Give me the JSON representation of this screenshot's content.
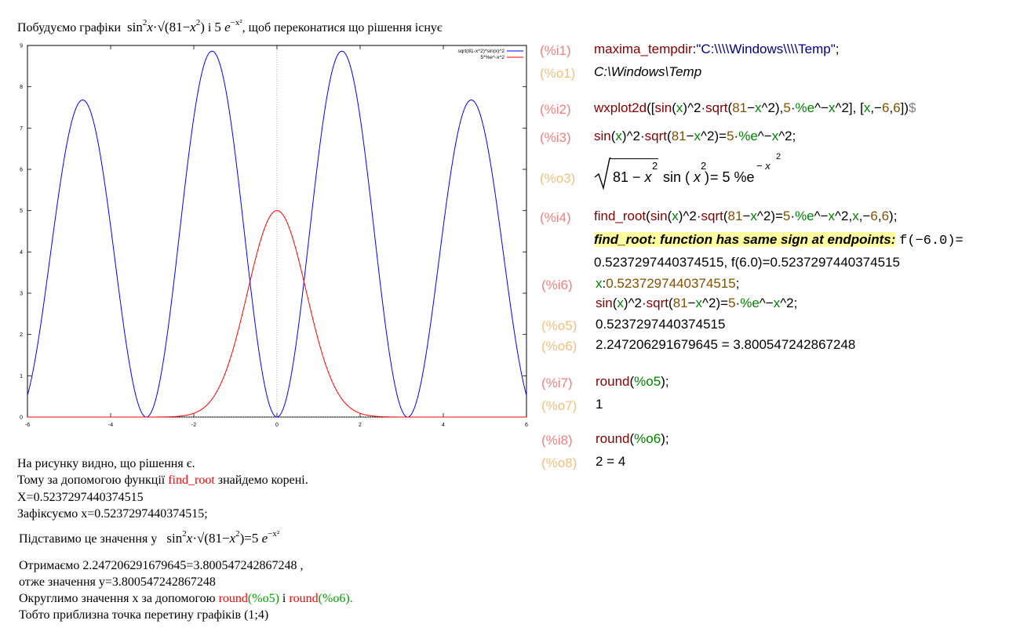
{
  "left": {
    "intro_text": "Побудуємо графіки",
    "intro_formula1": "sin²x·√(81−x²)",
    "intro_and": "і",
    "intro_formula2": "5e^(−x²)",
    "intro_suffix": ", щоб переконатися що рішення існує",
    "para1": "На рисунку видно, що рішення є.",
    "para2_pre": "Тому за допомогою функції",
    "para2_fn": "find_root",
    "para2_post": "знайдемо корені.",
    "para3": "X=0.5237297440374515",
    "para4": "Зафіксуємо x=0.5237297440374515;",
    "para5_pre": "Підставимо це значення у",
    "para5_formula": "sin²x·√(81−x²)=5e^(−x²)",
    "para6": "Отримаємо  2.247206291679645=3.800547242867248  ,",
    "para7": " отже значення y=3.800547242867248",
    "para8_pre": "Округлимо значення x за допомогою",
    "para8_fn1": "round",
    "para8_arg1": "(%o5)",
    "para8_mid": "і",
    "para8_fn2": "round",
    "para8_arg2": "(%o6).",
    "para9": "Тобто приблизна точка перетину графіків (1;4)"
  },
  "chart_data": {
    "type": "line",
    "xlim": [
      -6,
      6
    ],
    "ylim": [
      0,
      9
    ],
    "x_ticks": [
      "-6",
      "-4",
      "-2",
      "0",
      "2",
      "4",
      "6"
    ],
    "y_ticks": [
      "0",
      "1",
      "2",
      "3",
      "4",
      "5",
      "6",
      "7",
      "8",
      "9"
    ],
    "legend_position": "top-right",
    "grid": false,
    "series": [
      {
        "name": "sqrt(81-x^2)*sin(x)^2",
        "color": "#0000ff",
        "expression": "sin(x)^2*sqrt(81-x^2)"
      },
      {
        "name": "5*%e^-x^2",
        "color": "#ff0000",
        "expression": "5*exp(-x^2)"
      }
    ]
  },
  "cells": [
    {
      "label": "(%i1)",
      "kind": "input",
      "code": "maxima_tempdir:\"C:\\\\Windows\\\\Temp\";"
    },
    {
      "label": "(%o1)",
      "kind": "output",
      "text": "C:\\Windows\\Temp"
    },
    {
      "label": "(%i2)",
      "kind": "input",
      "code": "wxplot2d([sin(x)^2·sqrt(81−x^2),5·%e^−x^2], [x,−6,6])$"
    },
    {
      "label": "(%i3)",
      "kind": "input",
      "code": "sin(x)^2·sqrt(81−x^2)=5·%e^−x^2;"
    },
    {
      "label": "(%o3)",
      "kind": "output",
      "text": "√(81 − x²) sin(x)² = 5 %e^(−x²)"
    },
    {
      "label": "(%i4)",
      "kind": "input",
      "code": "find_root(sin(x)^2·sqrt(81−x^2)=5·%e^−x^2,x,−6,6);"
    },
    {
      "label": "",
      "kind": "warning",
      "warning": "find_root: function has same sign at endpoints:",
      "text1": "f(−6.0)=",
      "text2": "0.5237297440374515, f(6.0)=0.5237297440374515"
    },
    {
      "label": "(%i6)",
      "kind": "input",
      "code": "x:0.5237297440374515;",
      "code2": "sin(x)^2·sqrt(81−x^2)=5·%e^−x^2;"
    },
    {
      "label": "(%o5)",
      "kind": "output",
      "text": "0.5237297440374515"
    },
    {
      "label": "(%o6)",
      "kind": "output",
      "text": "2.247206291679645 = 3.800547242867248"
    },
    {
      "label": "(%i7)",
      "kind": "input",
      "code": "round(%o5);"
    },
    {
      "label": "(%o7)",
      "kind": "output",
      "text": "1"
    },
    {
      "label": "(%i8)",
      "kind": "input",
      "code": "round(%o6);"
    },
    {
      "label": "(%o8)",
      "kind": "output",
      "text": "2 = 4"
    }
  ]
}
